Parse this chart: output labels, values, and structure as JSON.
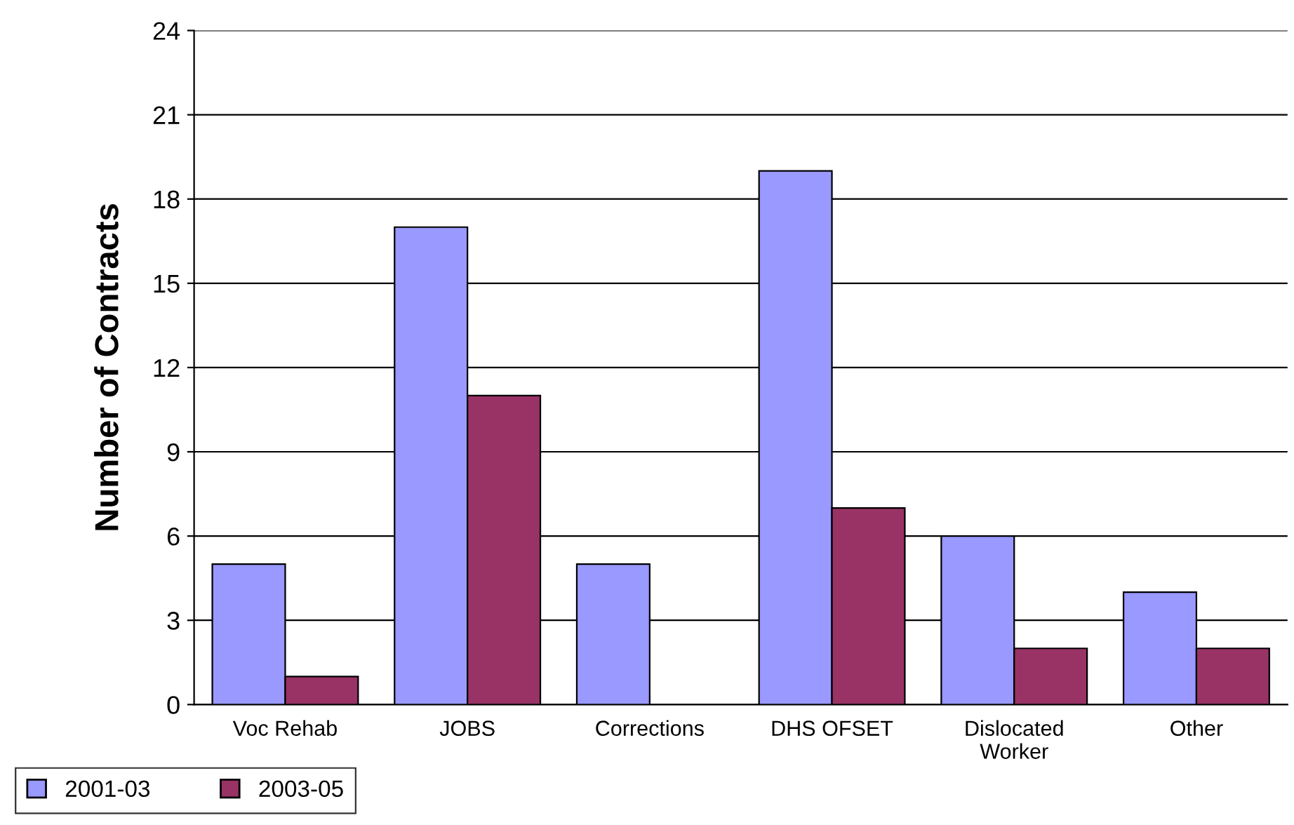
{
  "chart_data": {
    "type": "bar",
    "ylabel": "Number of Contracts",
    "categories": [
      "Voc Rehab",
      "JOBS",
      "Corrections",
      "DHS OFSET",
      "Dislocated\nWorker",
      "Other"
    ],
    "series": [
      {
        "name": "2001-03",
        "color": "#9999ff",
        "values": [
          5,
          17,
          5,
          19,
          6,
          4
        ]
      },
      {
        "name": "2003-05",
        "color": "#993366",
        "values": [
          1,
          11,
          0,
          7,
          2,
          2
        ]
      }
    ],
    "ylim": [
      0,
      24
    ],
    "yticks": [
      0,
      3,
      6,
      9,
      12,
      15,
      18,
      21,
      24
    ],
    "grid": "y",
    "legend": "bottom left"
  }
}
